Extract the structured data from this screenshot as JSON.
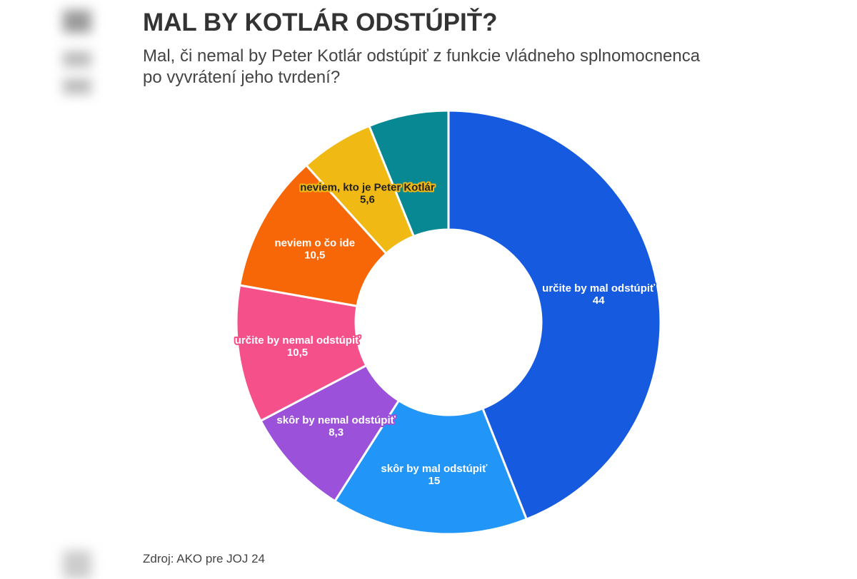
{
  "title": "MAL BY KOTLÁR ODSTÚPIŤ?",
  "subtitle": "Mal, či nemal by Peter Kotlár odstúpiť z funkcie vládneho splnomocnenca po vyvrátení jeho tvrdení?",
  "source": "Zdroj: AKO pre JOJ 24",
  "chart_data": {
    "type": "pie",
    "variant": "donut",
    "start": "top, clockwise",
    "slices": [
      {
        "label": "určite by mal odstúpiť",
        "value": 44,
        "value_label": "44",
        "color": "#165BDF",
        "text_color": "#ffffff"
      },
      {
        "label": "skôr by mal odstúpiť",
        "value": 15,
        "value_label": "15",
        "color": "#2196F8",
        "text_color": "#ffffff"
      },
      {
        "label": "skôr by nemal odstúpiť",
        "value": 8.3,
        "value_label": "8,3",
        "color": "#9B51D9",
        "text_color": "#ffffff"
      },
      {
        "label": "určite by nemal odstúpiť",
        "value": 10.5,
        "value_label": "10,5",
        "color": "#F5508A",
        "text_color": "#ffffff"
      },
      {
        "label": "neviem o čo ide",
        "value": 10.5,
        "value_label": "10,5",
        "color": "#F76707",
        "text_color": "#ffffff"
      },
      {
        "label": "neviem, kto je Peter Kotlár",
        "value": 5.6,
        "value_label": "5,6",
        "color": "#F0B914",
        "text_color": "#222222"
      },
      {
        "label": "",
        "value": 6.1,
        "value_label": "",
        "color": "#078893",
        "text_color": "#ffffff"
      }
    ]
  }
}
